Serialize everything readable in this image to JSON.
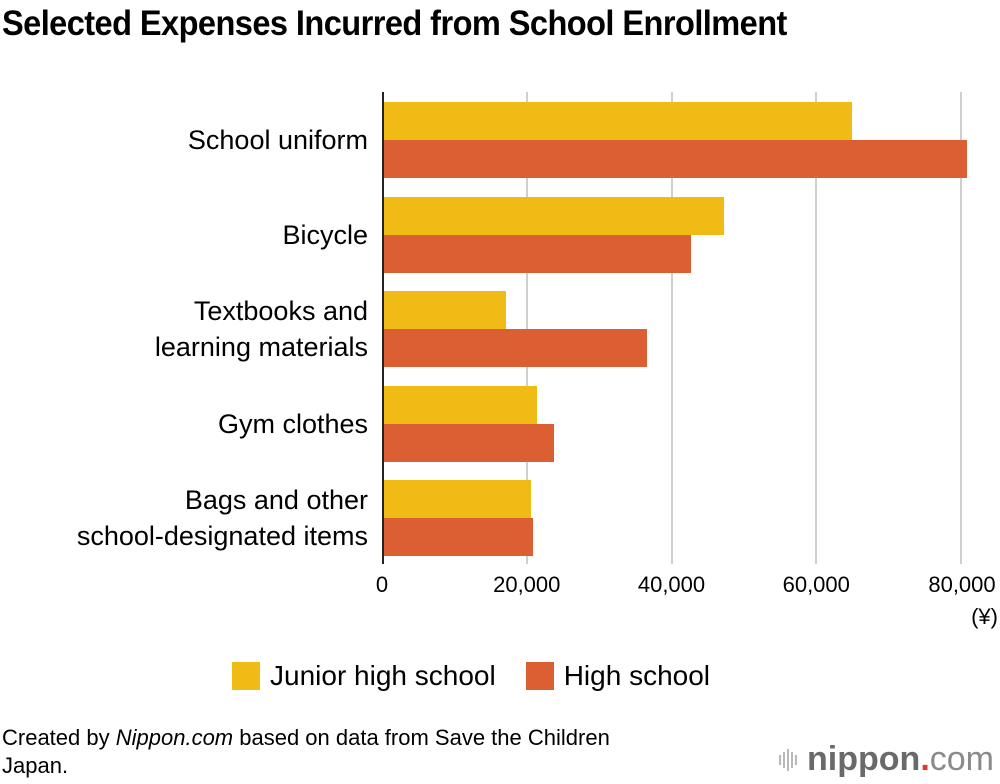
{
  "title": "Selected Expenses Incurred from School Enrollment",
  "colors": {
    "junior_high": "#f1bb15",
    "high_school": "#db5f33",
    "grid": "#cfcfcf",
    "axis": "#222222"
  },
  "categories": [
    {
      "line1": "School uniform",
      "line2": ""
    },
    {
      "line1": "Bicycle",
      "line2": ""
    },
    {
      "line1": "Textbooks and",
      "line2": "learning materials"
    },
    {
      "line1": "Gym clothes",
      "line2": ""
    },
    {
      "line1": "Bags and other",
      "line2": "school-designated items"
    }
  ],
  "x_ticks": [
    "0",
    "20,000",
    "40,000",
    "60,000",
    "80,000"
  ],
  "unit": "(¥)",
  "legend": {
    "junior_high": "Junior high school",
    "high_school": "High school"
  },
  "source": {
    "prefix": "Created by ",
    "brand": "Nippon.com",
    "suffix": " based on data from Save the Children Japan."
  },
  "logo": {
    "bold": "nippon",
    "dot": ".",
    "light": "com"
  },
  "chart_data": {
    "type": "bar",
    "orientation": "horizontal",
    "title": "Selected Expenses Incurred from School Enrollment",
    "categories": [
      "School uniform",
      "Bicycle",
      "Textbooks and learning materials",
      "Gym clothes",
      "Bags and other school-designated items"
    ],
    "series": [
      {
        "name": "Junior high school",
        "color": "#f1bb15",
        "values": [
          64800,
          47100,
          17000,
          21300,
          20400
        ]
      },
      {
        "name": "High school",
        "color": "#db5f33",
        "values": [
          80700,
          42600,
          36500,
          23600,
          20700
        ]
      }
    ],
    "xlabel": "(¥)",
    "ylabel": "",
    "xlim": [
      0,
      80000
    ],
    "x_ticks": [
      0,
      20000,
      40000,
      60000,
      80000
    ],
    "grid": true,
    "legend_position": "bottom"
  }
}
